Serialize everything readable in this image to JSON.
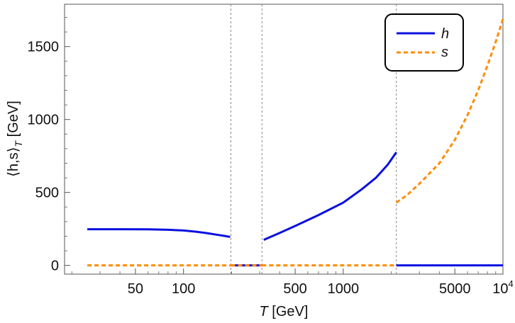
{
  "chart_data": {
    "type": "line",
    "xscale": "log",
    "xlim": [
      18,
      10000
    ],
    "ylim": [
      -60,
      1790
    ],
    "xlabel_var": "T",
    "xlabel_unit": " [GeV]",
    "ylabel": "⟨h,s⟩",
    "ylabel_sub": "T",
    "ylabel_unit": " [GeV]",
    "x_ticks": [
      {
        "value": 50,
        "label": "50"
      },
      {
        "value": 100,
        "label": "100"
      },
      {
        "value": 500,
        "label": "500"
      },
      {
        "value": 1000,
        "label": "1000"
      },
      {
        "value": 5000,
        "label": "5000"
      },
      {
        "value": 10000,
        "label": "10",
        "sup": "4"
      }
    ],
    "x_minor_ticks": [
      20,
      30,
      40,
      60,
      70,
      80,
      90,
      200,
      300,
      400,
      600,
      700,
      800,
      900,
      2000,
      3000,
      4000,
      6000,
      7000,
      8000,
      9000
    ],
    "y_ticks": [
      {
        "value": 0,
        "label": "0"
      },
      {
        "value": 500,
        "label": "500"
      },
      {
        "value": 1000,
        "label": "1000"
      },
      {
        "value": 1500,
        "label": "1500"
      }
    ],
    "y_minor_ticks": [
      100,
      200,
      300,
      400,
      600,
      700,
      800,
      900,
      1100,
      1200,
      1300,
      1400,
      1600,
      1700
    ],
    "vlines": [
      198,
      310,
      2150
    ],
    "grid": false,
    "legend_position": "top-right",
    "series": [
      {
        "name": "h",
        "color": "#0b10e0",
        "style": "solid",
        "segments": [
          [
            [
              25,
              248
            ],
            [
              40,
              248
            ],
            [
              60,
              247
            ],
            [
              80,
              244
            ],
            [
              100,
              239
            ],
            [
              120,
              231
            ],
            [
              140,
              221
            ],
            [
              160,
              211
            ],
            [
              180,
              202
            ],
            [
              196,
              195
            ]
          ],
          [
            [
              198,
              0
            ],
            [
              310,
              0
            ]
          ],
          [
            [
              318,
              175
            ],
            [
              400,
              222
            ],
            [
              500,
              270
            ],
            [
              700,
              345
            ],
            [
              1000,
              430
            ],
            [
              1300,
              520
            ],
            [
              1600,
              600
            ],
            [
              1900,
              690
            ],
            [
              2150,
              775
            ]
          ],
          [
            [
              2150,
              0
            ],
            [
              10000,
              0
            ]
          ]
        ]
      },
      {
        "name": "s",
        "color": "#ff8c00",
        "style": "dashed",
        "segments": [
          [
            [
              25,
              0
            ],
            [
              198,
              0
            ]
          ],
          [
            [
              198,
              0
            ],
            [
              310,
              0
            ]
          ],
          [
            [
              310,
              0
            ],
            [
              2150,
              0
            ]
          ],
          [
            [
              2150,
              430
            ],
            [
              2500,
              480
            ],
            [
              3000,
              560
            ],
            [
              4000,
              700
            ],
            [
              5000,
              860
            ],
            [
              6000,
              1030
            ],
            [
              7000,
              1200
            ],
            [
              8000,
              1370
            ],
            [
              9000,
              1530
            ],
            [
              10000,
              1690
            ]
          ]
        ]
      }
    ]
  }
}
